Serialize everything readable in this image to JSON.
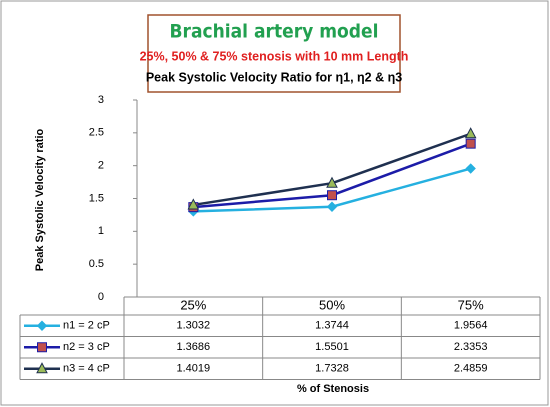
{
  "chart_data": {
    "type": "line",
    "title": "Brachial artery model",
    "subtitles": [
      "25%, 50% & 75% stenosis with 10 mm Length",
      "Peak Systolic Velocity Ratio for η1, η2 & η3"
    ],
    "xlabel": "% of Stenosis",
    "ylabel": "Peak Systolic Velocity ratio",
    "categories": [
      "25%",
      "50%",
      "75%"
    ],
    "series": [
      {
        "name": "n1 = 2 cP",
        "color": "#25b0e0",
        "marker": "diamond",
        "marker_color": "#25b0e0",
        "values": [
          1.3032,
          1.3744,
          1.9564
        ]
      },
      {
        "name": "n2 = 3 cP",
        "color": "#1c1ca8",
        "marker": "square",
        "marker_color": "#c0504d",
        "values": [
          1.3686,
          1.5501,
          2.3353
        ]
      },
      {
        "name": "n3 = 4 cP",
        "color": "#1f3050",
        "marker": "triangle",
        "marker_color": "#9bbb59",
        "values": [
          1.4019,
          1.7328,
          2.4859
        ]
      }
    ],
    "ylim": [
      0,
      3
    ],
    "yticks": [
      0,
      0.5,
      1,
      1.5,
      2,
      2.5,
      3
    ],
    "grid": false,
    "data_table": true
  }
}
